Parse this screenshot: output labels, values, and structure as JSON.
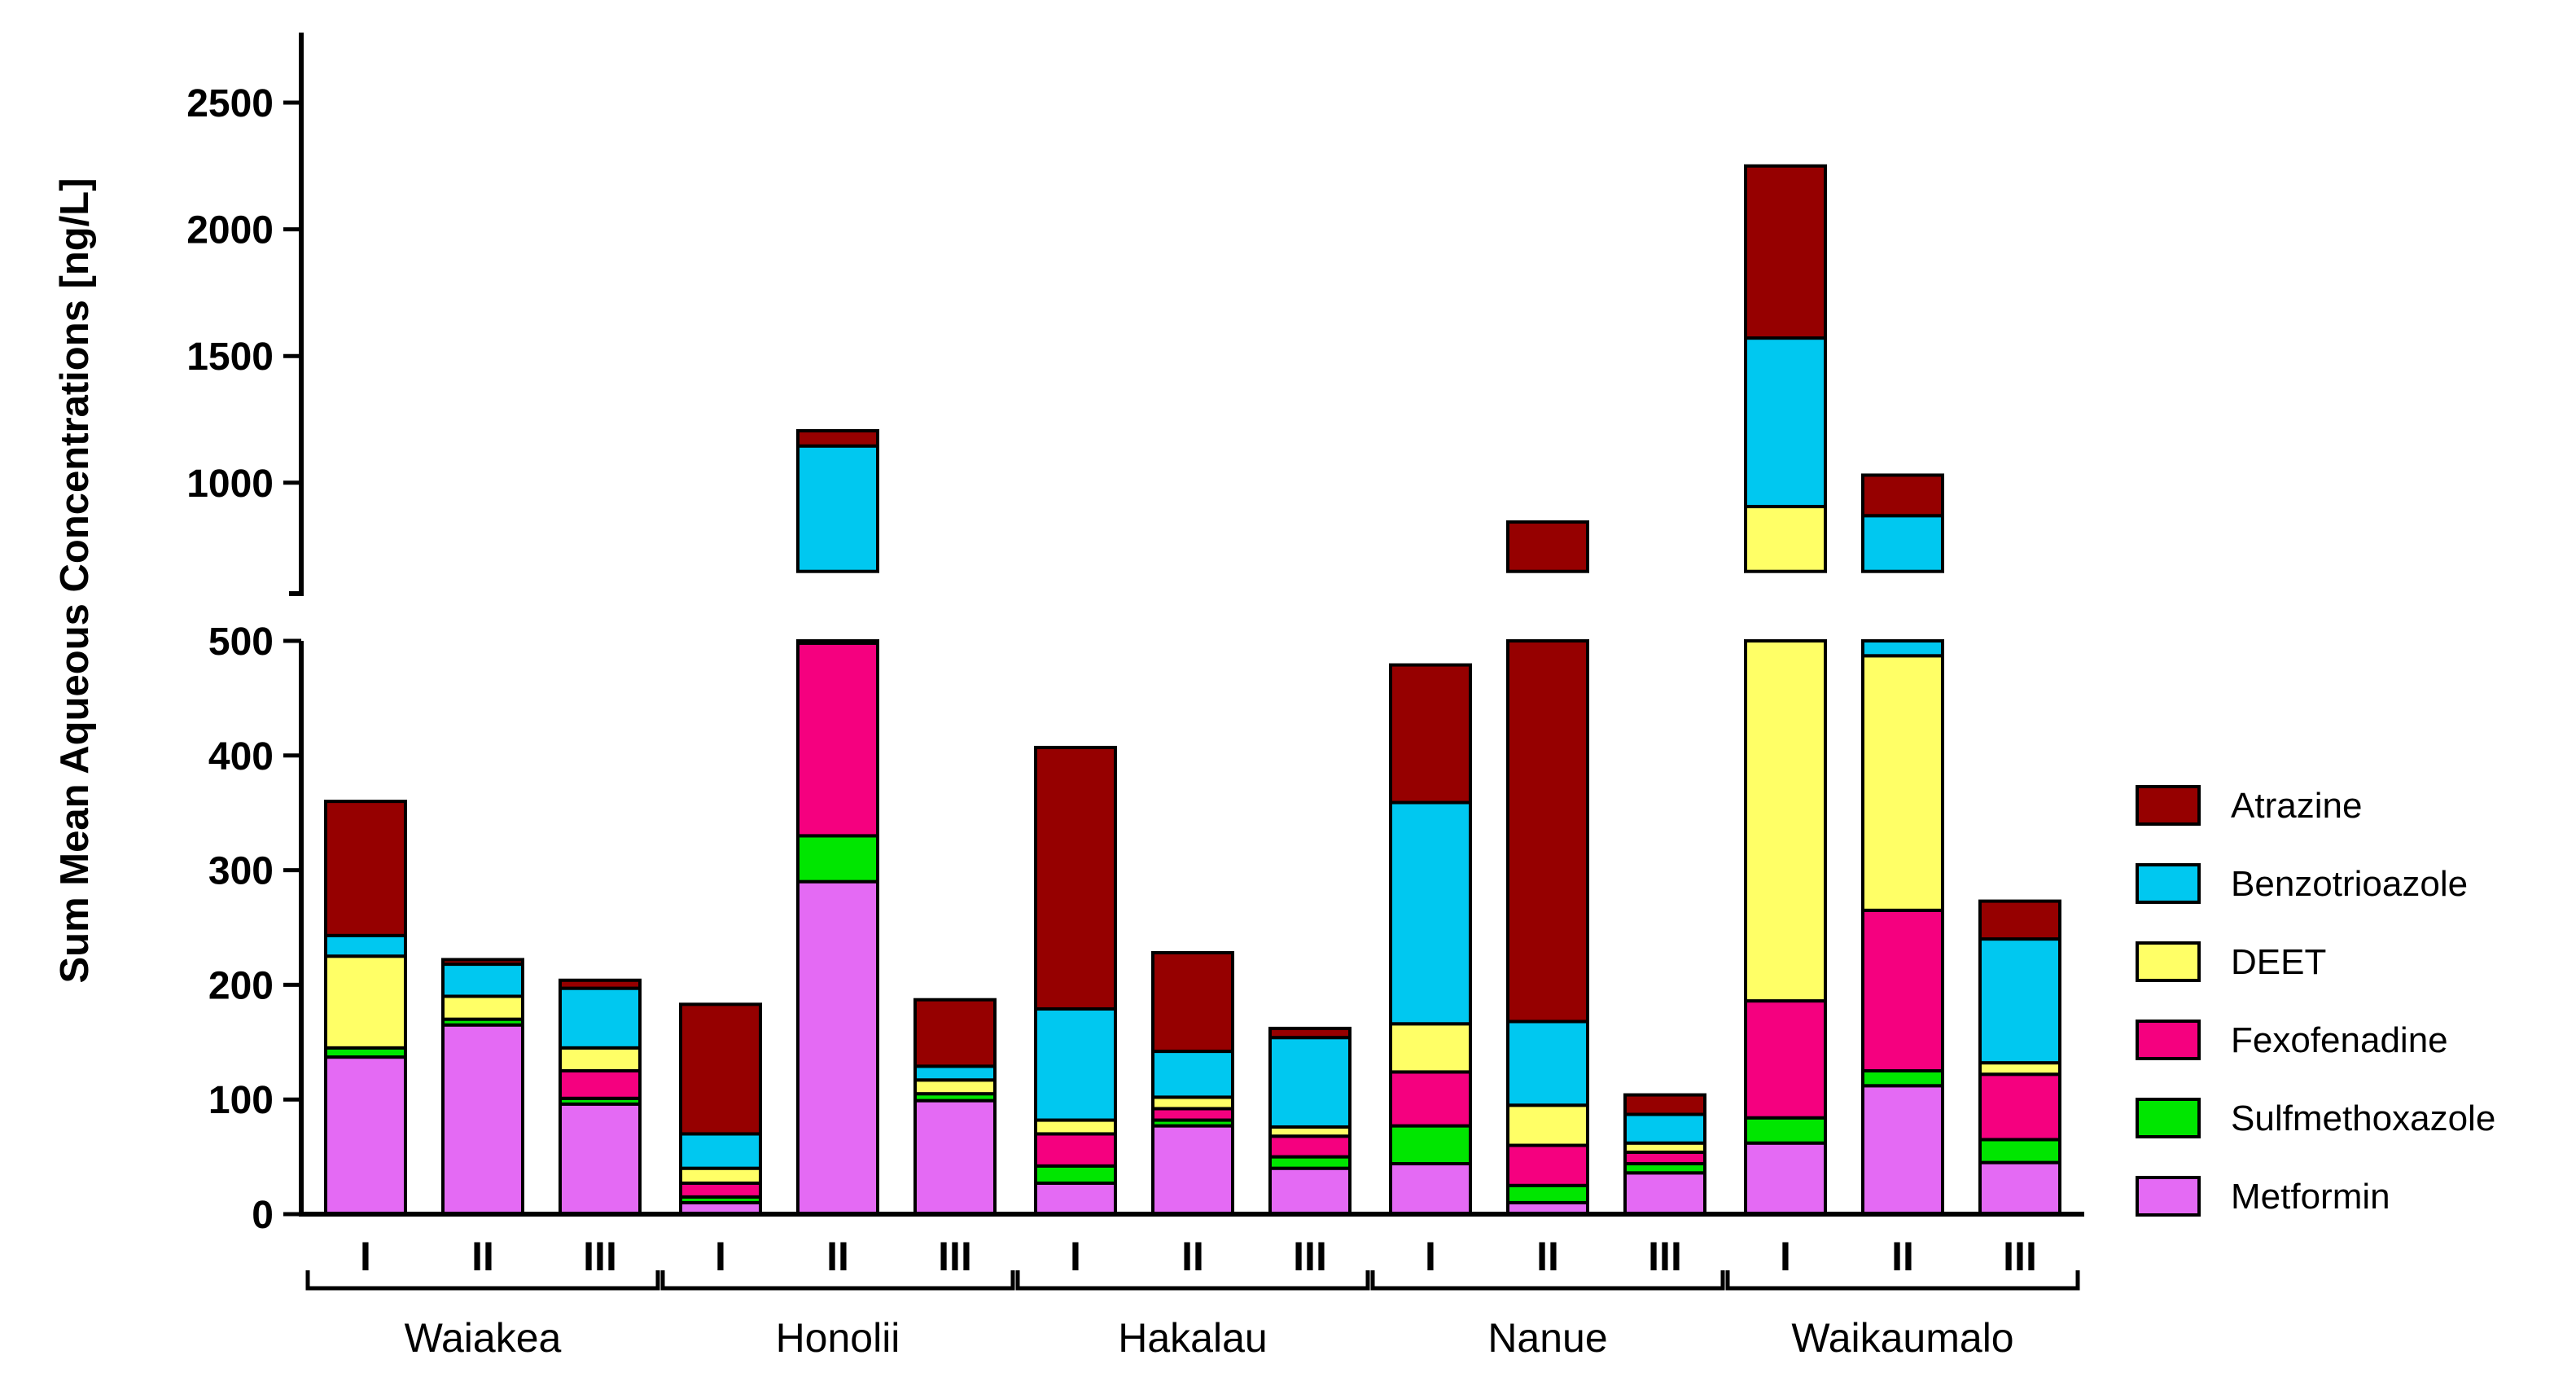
{
  "chart_data": {
    "type": "bar",
    "stacked": true,
    "axis_break": true,
    "ylabel": "Sum Mean Aqueous Concentrations [ng/L]",
    "y_ticks_lower": [
      "0",
      "100",
      "200",
      "300",
      "400",
      "500"
    ],
    "y_ticks_upper": [
      "1000",
      "1500",
      "2000",
      "2500"
    ],
    "ylim_lower": [
      0,
      500
    ],
    "ylim_upper": [
      650,
      2750
    ],
    "sites": [
      "Waiakea",
      "Honolii",
      "Hakalau",
      "Nanue",
      "Waikaumalo"
    ],
    "periods": [
      "I",
      "II",
      "III"
    ],
    "series_order": [
      "Metformin",
      "Sulfmethoxazole",
      "Fexofenadine",
      "DEET",
      "Benzotrioazole",
      "Atrazine"
    ],
    "series_colors": [
      "#e46af4",
      "#00e600",
      "#f5007f",
      "#ffff66",
      "#00c8f0",
      "#960000"
    ],
    "legend": [
      "Atrazine",
      "Benzotrioazole",
      "DEET",
      "Fexofenadine",
      "Sulfmethoxazole",
      "Metformin"
    ],
    "legend_colors": [
      "#960000",
      "#00c8f0",
      "#ffff66",
      "#f5007f",
      "#00e600",
      "#e46af4"
    ],
    "bars": [
      {
        "site": "Waiakea",
        "period": "I",
        "values": [
          137,
          8,
          0,
          80,
          18,
          117
        ]
      },
      {
        "site": "Waiakea",
        "period": "II",
        "values": [
          165,
          5,
          0,
          20,
          28,
          4
        ]
      },
      {
        "site": "Waiakea",
        "period": "III",
        "values": [
          96,
          5,
          24,
          20,
          52,
          7
        ]
      },
      {
        "site": "Honolii",
        "period": "I",
        "values": [
          10,
          5,
          12,
          13,
          30,
          113
        ]
      },
      {
        "site": "Honolii",
        "period": "II",
        "values": [
          290,
          40,
          168,
          0,
          647,
          60
        ]
      },
      {
        "site": "Honolii",
        "period": "III",
        "values": [
          99,
          6,
          0,
          12,
          12,
          58
        ]
      },
      {
        "site": "Hakalau",
        "period": "I",
        "values": [
          27,
          15,
          28,
          12,
          97,
          228
        ]
      },
      {
        "site": "Hakalau",
        "period": "II",
        "values": [
          77,
          5,
          10,
          10,
          40,
          86
        ]
      },
      {
        "site": "Hakalau",
        "period": "III",
        "values": [
          40,
          10,
          18,
          8,
          78,
          8
        ]
      },
      {
        "site": "Nanue",
        "period": "I",
        "values": [
          44,
          33,
          47,
          42,
          193,
          120
        ]
      },
      {
        "site": "Nanue",
        "period": "II",
        "values": [
          10,
          15,
          35,
          35,
          73,
          677
        ]
      },
      {
        "site": "Nanue",
        "period": "III",
        "values": [
          36,
          8,
          10,
          8,
          25,
          17
        ]
      },
      {
        "site": "Waikaumalo",
        "period": "I",
        "values": [
          62,
          22,
          102,
          720,
          665,
          679
        ]
      },
      {
        "site": "Waikaumalo",
        "period": "II",
        "values": [
          112,
          13,
          140,
          222,
          383,
          160
        ]
      },
      {
        "site": "Waikaumalo",
        "period": "III",
        "values": [
          45,
          20,
          57,
          10,
          108,
          33
        ]
      }
    ]
  }
}
